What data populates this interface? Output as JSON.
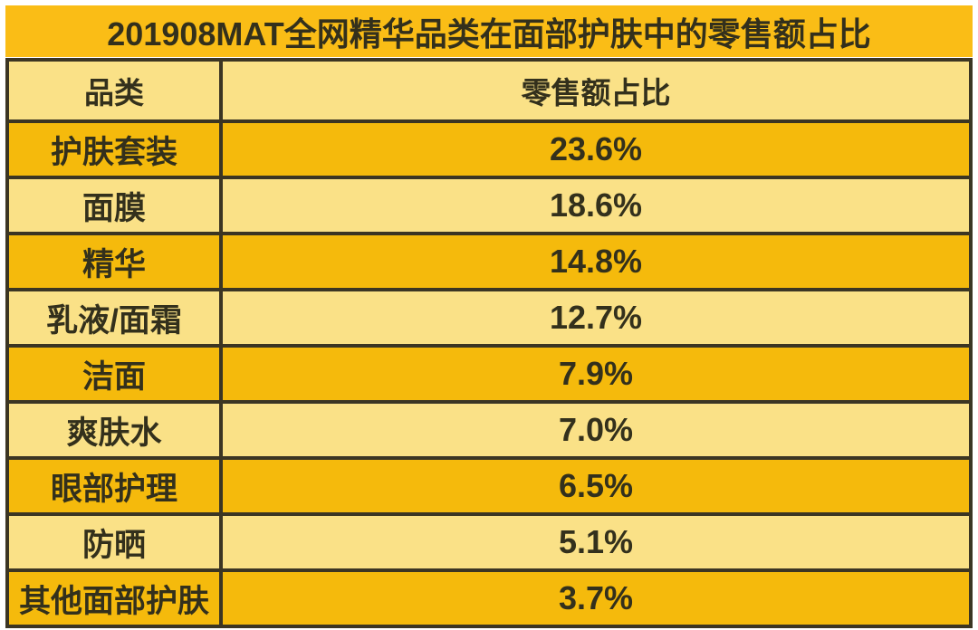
{
  "title": "201908MAT全网精华品类在面部护肤中的零售额占比",
  "table": {
    "headers": [
      "品类",
      "零售额占比"
    ],
    "rows": [
      {
        "category": "护肤套装",
        "share": "23.6%"
      },
      {
        "category": "面膜",
        "share": "18.6%"
      },
      {
        "category": "精华",
        "share": "14.8%"
      },
      {
        "category": "乳液/面霜",
        "share": "12.7%"
      },
      {
        "category": "洁面",
        "share": "7.9%"
      },
      {
        "category": "爽肤水",
        "share": "7.0%"
      },
      {
        "category": "眼部护理",
        "share": "6.5%"
      },
      {
        "category": "防晒",
        "share": "5.1%"
      },
      {
        "category": "其他面部护肤",
        "share": "3.7%"
      }
    ]
  },
  "colors": {
    "page_bg": "#FFFFFF",
    "title_bg": "#FABD16",
    "row_dark": "#F5BA0C",
    "row_light": "#FAE187",
    "border": "#3B3523",
    "text": "#33301C"
  },
  "chart_data": {
    "type": "table",
    "title": "201908MAT全网精华品类在面部护肤中的零售额占比",
    "columns": [
      "品类",
      "零售额占比"
    ],
    "categories": [
      "护肤套装",
      "面膜",
      "精华",
      "乳液/面霜",
      "洁面",
      "爽肤水",
      "眼部护理",
      "防晒",
      "其他面部护肤"
    ],
    "values": [
      23.6,
      18.6,
      14.8,
      12.7,
      7.9,
      7.0,
      6.5,
      5.1,
      3.7
    ],
    "unit": "%",
    "legend_position": "none",
    "grid": "table-borders"
  }
}
